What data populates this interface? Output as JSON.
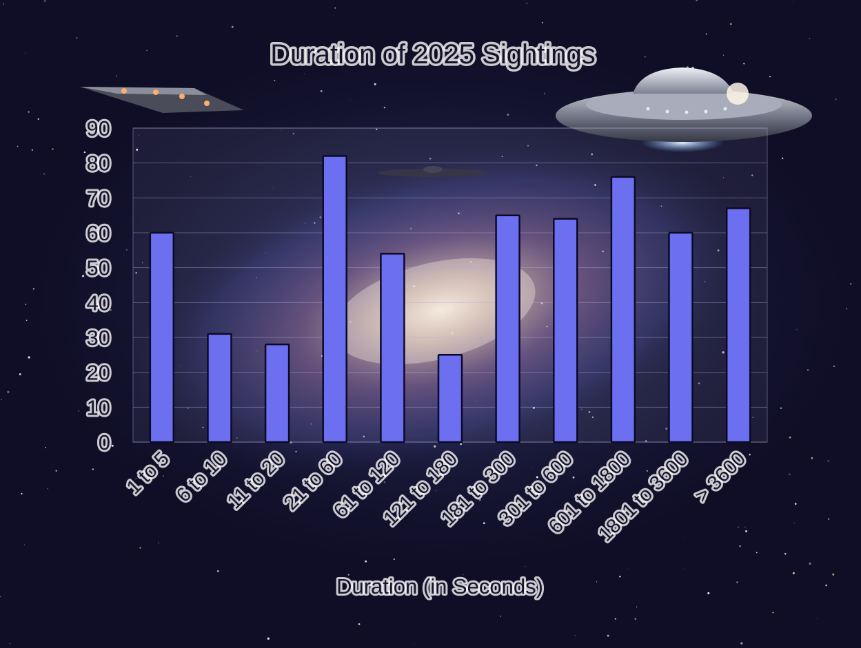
{
  "chart_data": {
    "type": "bar",
    "title": "Duration of 2025 Sightings",
    "xlabel": "Duration (in Seconds)",
    "ylabel": "",
    "categories": [
      "1 to 5",
      "6 to 10",
      "11 to 20",
      "21 to 60",
      "61 to 120",
      "121 to 180",
      "181 to 300",
      "301 to 600",
      "601 to 1800",
      "1801 to 3600",
      "> 3600"
    ],
    "values": [
      60,
      31,
      28,
      82,
      54,
      25,
      65,
      64,
      76,
      60,
      67
    ],
    "ylim": [
      0,
      90
    ],
    "yticks": [
      0,
      10,
      20,
      30,
      40,
      50,
      60,
      70,
      80,
      90
    ],
    "grid": true,
    "bar_color": "#6b6ff0",
    "bar_outline_color": "#0b0a26"
  }
}
